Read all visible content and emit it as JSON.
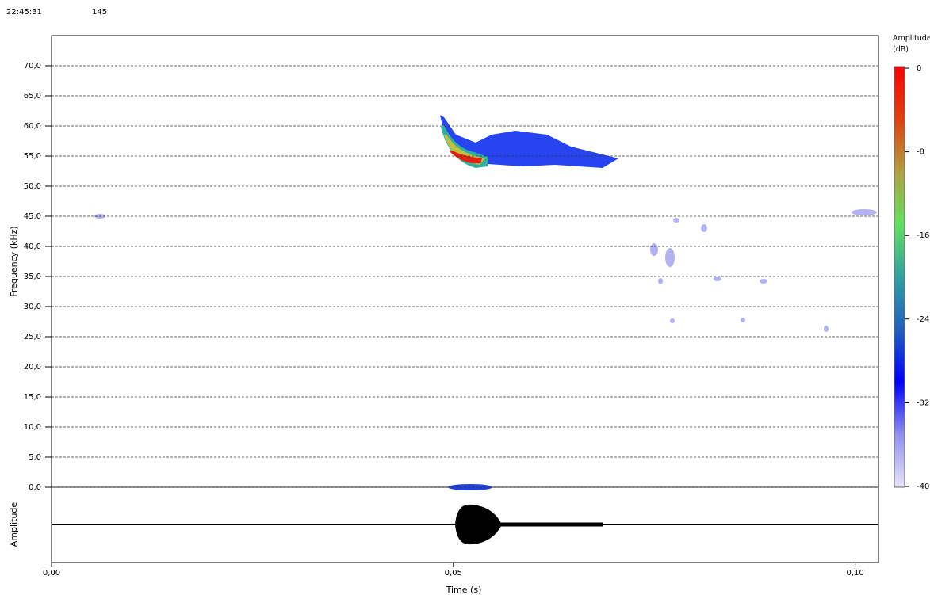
{
  "header": {
    "time": "22:45:31",
    "count": "145"
  },
  "chart_data": {
    "type": "spectrogram",
    "xlabel": "Time (s)",
    "ylabel": "Frequency (kHz)",
    "waveform_label": "Amplitude",
    "xlim": [
      0,
      0.1029
    ],
    "ylim": [
      0,
      75
    ],
    "xticks": [
      {
        "value": 0,
        "label": "0,00"
      },
      {
        "value": 0.05,
        "label": "0,05"
      },
      {
        "value": 0.1,
        "label": "0,10"
      }
    ],
    "yticks": [
      {
        "value": 0,
        "label": "0,0"
      },
      {
        "value": 5,
        "label": "5,0"
      },
      {
        "value": 10,
        "label": "10,0"
      },
      {
        "value": 15,
        "label": "15,0"
      },
      {
        "value": 20,
        "label": "20,0"
      },
      {
        "value": 25,
        "label": "25,0"
      },
      {
        "value": 30,
        "label": "30,0"
      },
      {
        "value": 35,
        "label": "35,0"
      },
      {
        "value": 40,
        "label": "40,0"
      },
      {
        "value": 45,
        "label": "45,0"
      },
      {
        "value": 50,
        "label": "50,0"
      },
      {
        "value": 55,
        "label": "55,0"
      },
      {
        "value": 60,
        "label": "60,0"
      },
      {
        "value": 65,
        "label": "65,0"
      },
      {
        "value": 70,
        "label": "70,0"
      }
    ],
    "grid": true,
    "colorbar": {
      "title": "Amplitude (dB)",
      "lim": [
        -40,
        0
      ],
      "ticks": [
        0,
        -8,
        -16,
        -24,
        -32,
        -40
      ],
      "colormap": [
        "#e8e4f8",
        "#9090f0",
        "#0000ff",
        "#2060c0",
        "#30a0a0",
        "#60e060",
        "#b0a040",
        "#e04010",
        "#ff0000"
      ]
    }
  }
}
